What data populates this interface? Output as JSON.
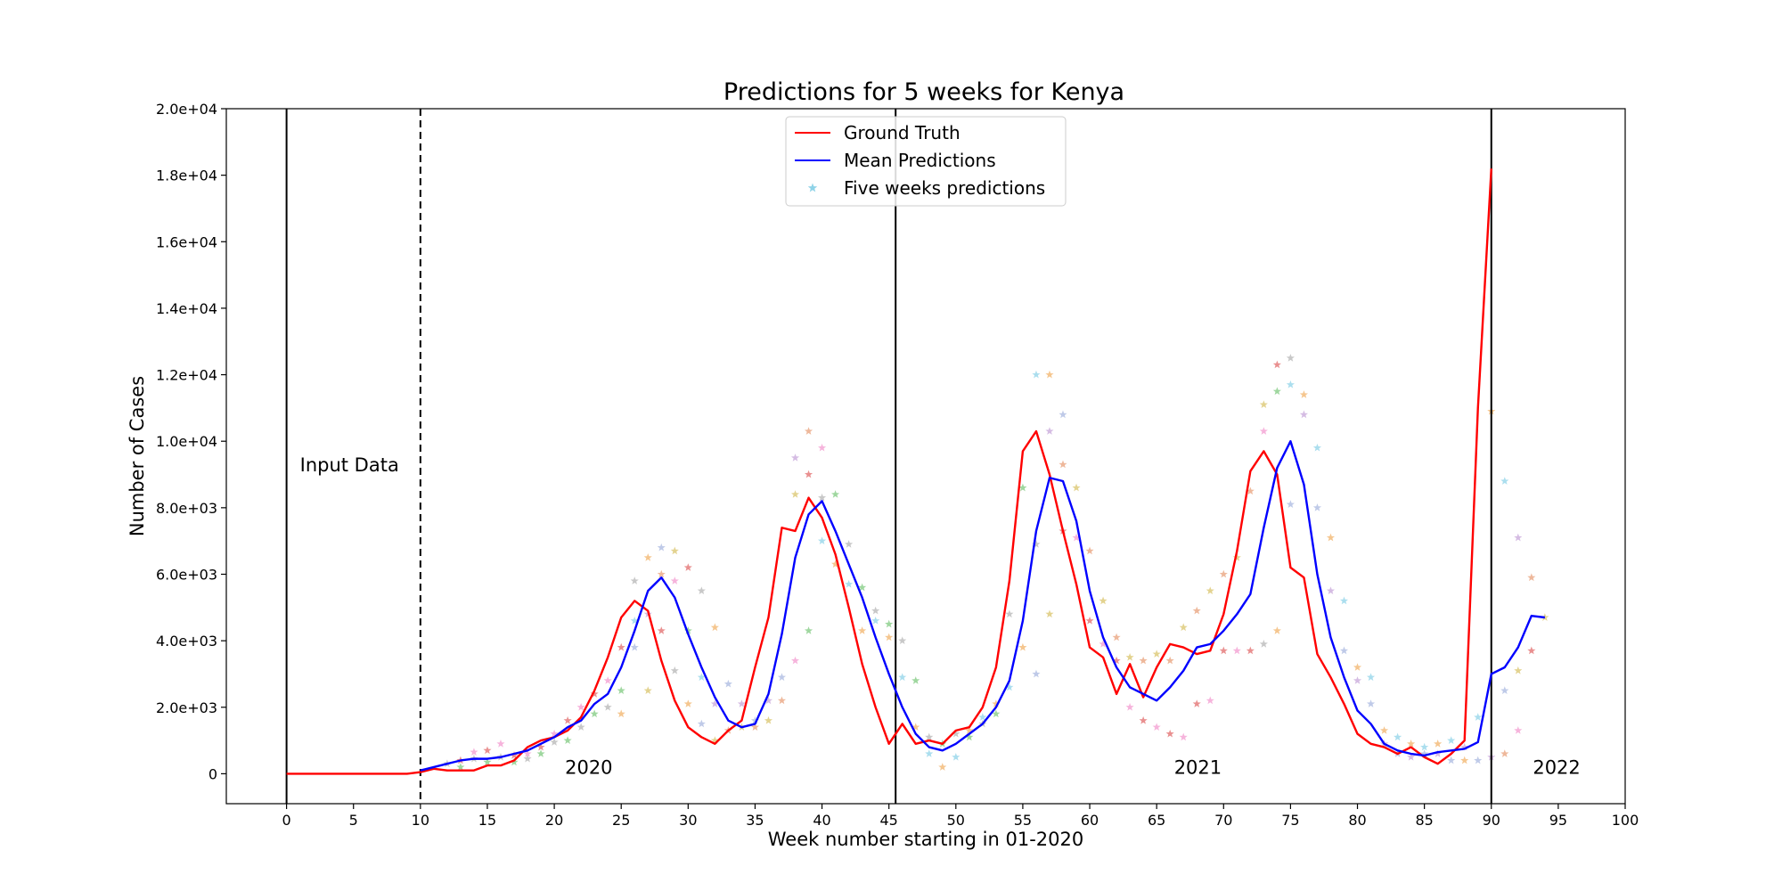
{
  "chart_data": {
    "type": "line",
    "title": "Predictions for 5 weeks for Kenya",
    "xlabel": "Week number starting in 01-2020",
    "ylabel": "Number of Cases",
    "xlim": [
      -4.5,
      100
    ],
    "ylim": [
      -900,
      20000
    ],
    "xticks": [
      0,
      5,
      10,
      15,
      20,
      25,
      30,
      35,
      40,
      45,
      50,
      55,
      60,
      65,
      70,
      75,
      80,
      85,
      90,
      95,
      100
    ],
    "yticks": [
      0,
      2000,
      4000,
      6000,
      8000,
      10000,
      12000,
      14000,
      16000,
      18000,
      20000
    ],
    "ytick_labels": [
      "0",
      "2.0e+03",
      "4.0e+03",
      "6.0e+03",
      "8.0e+03",
      "1.0e+04",
      "1.2e+04",
      "1.4e+04",
      "1.6e+04",
      "1.8e+04",
      "2.0e+04"
    ],
    "grid": false,
    "legend_position": "top-center",
    "legend": [
      {
        "label": "Ground Truth",
        "kind": "line",
        "color": "#ff0000"
      },
      {
        "label": "Mean Predictions",
        "kind": "line",
        "color": "#0000ff"
      },
      {
        "label": "Five weeks predictions",
        "kind": "star",
        "color": "#8fd3e8"
      }
    ],
    "vlines": [
      {
        "x": 0,
        "style": "solid"
      },
      {
        "x": 10,
        "style": "dashed"
      },
      {
        "x": 45.5,
        "style": "solid"
      },
      {
        "x": 90,
        "style": "solid"
      }
    ],
    "annotations": [
      {
        "text": "Input Data",
        "x": 1,
        "y": 9100
      },
      {
        "text": "2020",
        "x": 20.8,
        "y": 0
      },
      {
        "text": "2021",
        "x": 66.3,
        "y": 0
      },
      {
        "text": "2022",
        "x": 93.1,
        "y": 0
      }
    ],
    "series": [
      {
        "name": "Ground Truth",
        "color": "#ff0000",
        "x": [
          0,
          1,
          2,
          3,
          4,
          5,
          6,
          7,
          8,
          9,
          10,
          11,
          12,
          13,
          14,
          15,
          16,
          17,
          18,
          19,
          20,
          21,
          22,
          23,
          24,
          25,
          26,
          27,
          28,
          29,
          30,
          31,
          32,
          33,
          34,
          35,
          36,
          37,
          38,
          39,
          40,
          41,
          42,
          43,
          44,
          45,
          46,
          47,
          48,
          49,
          50,
          51,
          52,
          53,
          54,
          55,
          56,
          57,
          58,
          59,
          60,
          61,
          62,
          63,
          64,
          65,
          66,
          67,
          68,
          69,
          70,
          71,
          72,
          73,
          74,
          75,
          76,
          77,
          78,
          79,
          80,
          81,
          82,
          83,
          84,
          85,
          86,
          87,
          88,
          89,
          90
        ],
        "y": [
          0,
          0,
          0,
          0,
          0,
          0,
          0,
          0,
          0,
          0,
          50,
          150,
          100,
          100,
          100,
          250,
          250,
          400,
          800,
          1000,
          1100,
          1300,
          1700,
          2500,
          3500,
          4700,
          5200,
          4900,
          3400,
          2200,
          1400,
          1100,
          900,
          1300,
          1600,
          3200,
          4700,
          7400,
          7300,
          8300,
          7700,
          6600,
          5000,
          3300,
          2000,
          900,
          1500,
          900,
          1000,
          900,
          1300,
          1400,
          2000,
          3200,
          5800,
          9700,
          10300,
          9000,
          7300,
          5700,
          3800,
          3500,
          2400,
          3300,
          2300,
          3200,
          3900,
          3800,
          3600,
          3700,
          4800,
          6700,
          9100,
          9700,
          9000,
          6200,
          5900,
          3600,
          2900,
          2100,
          1200,
          900,
          800,
          600,
          800,
          500,
          300,
          600,
          1000,
          11000,
          18200
        ]
      },
      {
        "name": "Mean Predictions",
        "color": "#0000ff",
        "x": [
          10,
          11,
          12,
          13,
          14,
          15,
          16,
          17,
          18,
          19,
          20,
          21,
          22,
          23,
          24,
          25,
          26,
          27,
          28,
          29,
          30,
          31,
          32,
          33,
          34,
          35,
          36,
          37,
          38,
          39,
          40,
          41,
          42,
          43,
          44,
          45,
          46,
          47,
          48,
          49,
          50,
          51,
          52,
          53,
          54,
          55,
          56,
          57,
          58,
          59,
          60,
          61,
          62,
          63,
          64,
          65,
          66,
          67,
          68,
          69,
          70,
          71,
          72,
          73,
          74,
          75,
          76,
          77,
          78,
          79,
          80,
          81,
          82,
          83,
          84,
          85,
          86,
          87,
          88,
          89,
          90,
          91,
          92,
          93,
          94
        ],
        "y": [
          100,
          200,
          300,
          400,
          450,
          450,
          500,
          600,
          700,
          900,
          1100,
          1400,
          1600,
          2100,
          2400,
          3200,
          4300,
          5500,
          5900,
          5300,
          4200,
          3200,
          2300,
          1600,
          1400,
          1500,
          2400,
          4200,
          6500,
          7800,
          8200,
          7300,
          6300,
          5300,
          4100,
          3000,
          2000,
          1200,
          800,
          700,
          900,
          1200,
          1500,
          2000,
          2800,
          4600,
          7300,
          8900,
          8800,
          7600,
          5500,
          4100,
          3200,
          2600,
          2400,
          2200,
          2600,
          3100,
          3800,
          3900,
          4300,
          4800,
          5400,
          7400,
          9200,
          10000,
          8700,
          6000,
          4100,
          2900,
          1900,
          1500,
          900,
          700,
          600,
          550,
          650,
          700,
          750,
          950,
          3000,
          3200,
          3800,
          4750,
          4700
        ]
      }
    ],
    "scatter_series": [
      {
        "name": "Five weeks predictions",
        "marker": "star",
        "colors": [
          "#e26b6b",
          "#7fc97f",
          "#f2b36a",
          "#c7a6d9",
          "#d9c46b",
          "#f39bd0",
          "#b5b5b5",
          "#8fd3e8",
          "#a9b8e0",
          "#e8a07a"
        ],
        "points": [
          [
            12,
            300
          ],
          [
            13,
            400
          ],
          [
            13,
            200
          ],
          [
            14,
            650
          ],
          [
            14,
            450
          ],
          [
            15,
            700
          ],
          [
            15,
            350
          ],
          [
            16,
            900
          ],
          [
            16,
            500
          ],
          [
            17,
            550
          ],
          [
            17,
            350
          ],
          [
            18,
            600
          ],
          [
            18,
            450
          ],
          [
            19,
            800
          ],
          [
            19,
            600
          ],
          [
            20,
            1200
          ],
          [
            20,
            950
          ],
          [
            21,
            1600
          ],
          [
            21,
            1000
          ],
          [
            22,
            2000
          ],
          [
            22,
            1400
          ],
          [
            23,
            2400
          ],
          [
            23,
            1800
          ],
          [
            24,
            2800
          ],
          [
            24,
            2000
          ],
          [
            25,
            3800
          ],
          [
            25,
            2500
          ],
          [
            25,
            1800
          ],
          [
            26,
            5800
          ],
          [
            26,
            4600
          ],
          [
            26,
            3800
          ],
          [
            27,
            6500
          ],
          [
            27,
            4800
          ],
          [
            27,
            2500
          ],
          [
            28,
            6800
          ],
          [
            28,
            6000
          ],
          [
            28,
            4300
          ],
          [
            29,
            6700
          ],
          [
            29,
            5800
          ],
          [
            29,
            3100
          ],
          [
            30,
            6200
          ],
          [
            30,
            4300
          ],
          [
            30,
            2100
          ],
          [
            31,
            5500
          ],
          [
            31,
            2900
          ],
          [
            31,
            1500
          ],
          [
            32,
            4400
          ],
          [
            32,
            2100
          ],
          [
            32,
            1000
          ],
          [
            33,
            2700
          ],
          [
            33,
            1300
          ],
          [
            34,
            2100
          ],
          [
            34,
            1400
          ],
          [
            35,
            1600
          ],
          [
            35,
            1400
          ],
          [
            36,
            2200
          ],
          [
            36,
            1600
          ],
          [
            37,
            2900
          ],
          [
            37,
            2200
          ],
          [
            38,
            9500
          ],
          [
            38,
            8400
          ],
          [
            38,
            3400
          ],
          [
            39,
            10300
          ],
          [
            39,
            9000
          ],
          [
            39,
            4300
          ],
          [
            40,
            9800
          ],
          [
            40,
            8300
          ],
          [
            40,
            7000
          ],
          [
            41,
            8400
          ],
          [
            41,
            6300
          ],
          [
            42,
            6900
          ],
          [
            42,
            5700
          ],
          [
            43,
            5600
          ],
          [
            43,
            4300
          ],
          [
            44,
            4900
          ],
          [
            44,
            4600
          ],
          [
            45,
            4500
          ],
          [
            45,
            4100
          ],
          [
            46,
            4000
          ],
          [
            46,
            2900
          ],
          [
            47,
            2800
          ],
          [
            47,
            1400
          ],
          [
            48,
            1100
          ],
          [
            48,
            600
          ],
          [
            49,
            900
          ],
          [
            49,
            200
          ],
          [
            50,
            1200
          ],
          [
            50,
            500
          ],
          [
            51,
            1100
          ],
          [
            51,
            1300
          ],
          [
            52,
            1500
          ],
          [
            52,
            1700
          ],
          [
            53,
            1800
          ],
          [
            53,
            2100
          ],
          [
            54,
            4800
          ],
          [
            54,
            2600
          ],
          [
            55,
            8600
          ],
          [
            55,
            3800
          ],
          [
            56,
            6900
          ],
          [
            56,
            12000
          ],
          [
            56,
            3000
          ],
          [
            57,
            12000
          ],
          [
            57,
            10300
          ],
          [
            57,
            4800
          ],
          [
            58,
            10800
          ],
          [
            58,
            9300
          ],
          [
            58,
            7300
          ],
          [
            59,
            8600
          ],
          [
            59,
            7100
          ],
          [
            60,
            6700
          ],
          [
            60,
            4600
          ],
          [
            61,
            5200
          ],
          [
            61,
            3900
          ],
          [
            62,
            4100
          ],
          [
            62,
            3400
          ],
          [
            63,
            3500
          ],
          [
            63,
            2000
          ],
          [
            64,
            3400
          ],
          [
            64,
            1600
          ],
          [
            65,
            3600
          ],
          [
            65,
            1400
          ],
          [
            66,
            3400
          ],
          [
            66,
            1200
          ],
          [
            67,
            4400
          ],
          [
            67,
            1100
          ],
          [
            68,
            4900
          ],
          [
            68,
            2100
          ],
          [
            69,
            5500
          ],
          [
            69,
            2200
          ],
          [
            70,
            6000
          ],
          [
            70,
            3700
          ],
          [
            71,
            6500
          ],
          [
            71,
            3700
          ],
          [
            72,
            8500
          ],
          [
            72,
            3700
          ],
          [
            73,
            11100
          ],
          [
            73,
            10300
          ],
          [
            73,
            3900
          ],
          [
            74,
            12300
          ],
          [
            74,
            11500
          ],
          [
            74,
            4300
          ],
          [
            75,
            12500
          ],
          [
            75,
            11700
          ],
          [
            75,
            8100
          ],
          [
            76,
            11400
          ],
          [
            76,
            10800
          ],
          [
            77,
            9800
          ],
          [
            77,
            8000
          ],
          [
            78,
            7100
          ],
          [
            78,
            5500
          ],
          [
            79,
            5200
          ],
          [
            79,
            3700
          ],
          [
            80,
            3200
          ],
          [
            80,
            2800
          ],
          [
            81,
            2900
          ],
          [
            81,
            2100
          ],
          [
            82,
            1300
          ],
          [
            82,
            900
          ],
          [
            83,
            1100
          ],
          [
            83,
            600
          ],
          [
            84,
            900
          ],
          [
            84,
            500
          ],
          [
            85,
            800
          ],
          [
            85,
            600
          ],
          [
            86,
            900
          ],
          [
            86,
            600
          ],
          [
            87,
            1000
          ],
          [
            87,
            400
          ],
          [
            88,
            400
          ],
          [
            88,
            800
          ],
          [
            89,
            1700
          ],
          [
            89,
            400
          ],
          [
            90,
            10900
          ],
          [
            90,
            500
          ],
          [
            91,
            8800
          ],
          [
            91,
            2500
          ],
          [
            91,
            600
          ],
          [
            92,
            7100
          ],
          [
            92,
            3100
          ],
          [
            92,
            1300
          ],
          [
            93,
            5900
          ],
          [
            93,
            3700
          ],
          [
            94,
            4700
          ]
        ]
      }
    ]
  }
}
